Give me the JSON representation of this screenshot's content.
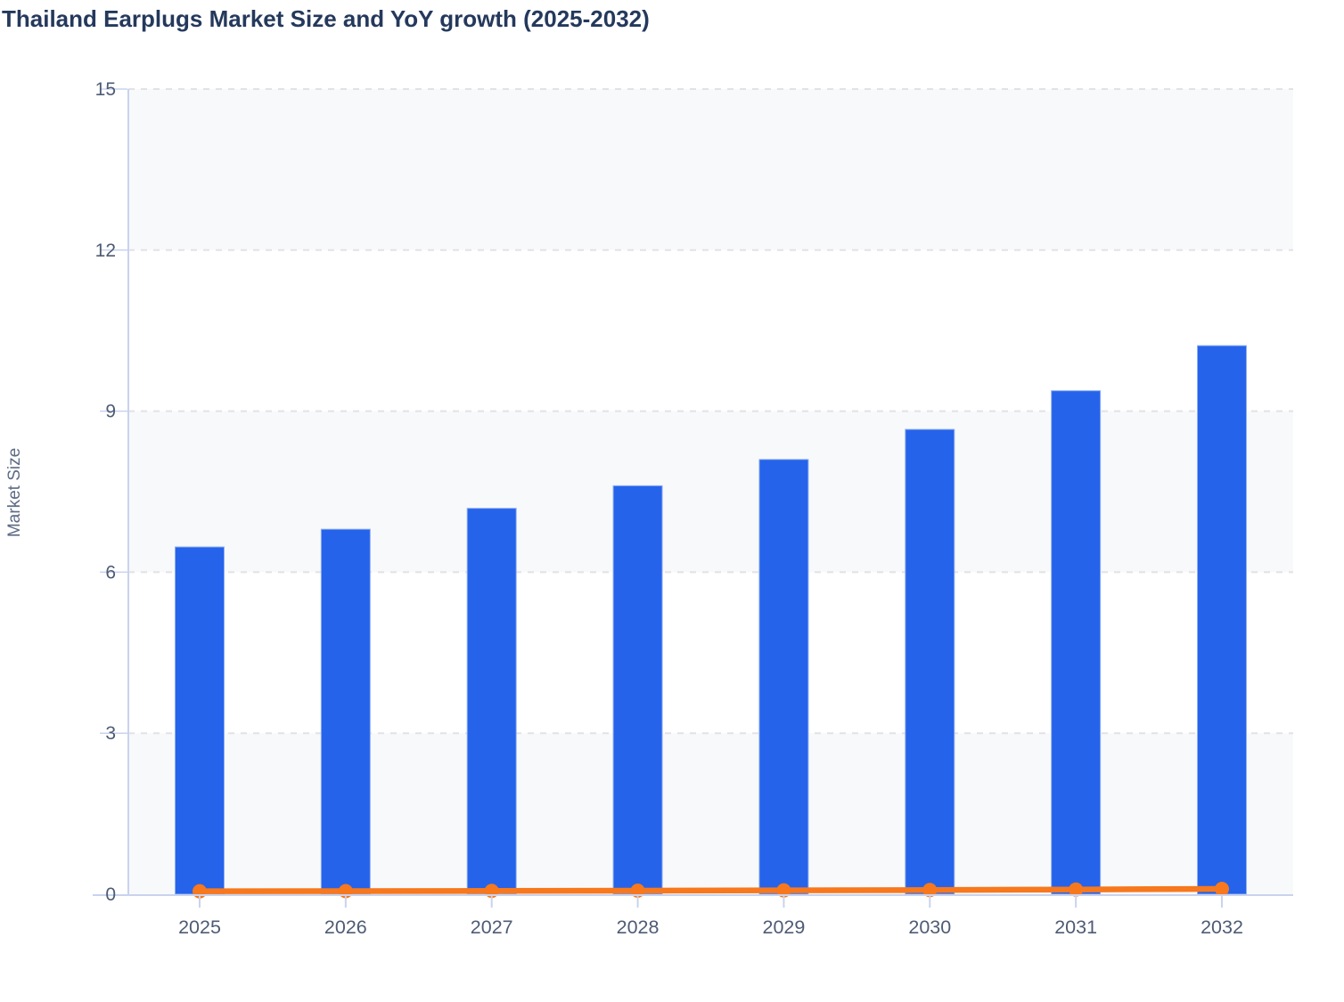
{
  "title": "Thailand Earplugs Market Size and YoY growth (2025-2032)",
  "chart_data": {
    "type": "bar",
    "subtype": "bar-with-line-overlay",
    "title": "Thailand Earplugs Market Size and YoY growth (2025-2032)",
    "xlabel": "",
    "ylabel": "Market Size",
    "categories": [
      "2025",
      "2026",
      "2027",
      "2028",
      "2029",
      "2030",
      "2031",
      "2032"
    ],
    "series": [
      {
        "name": "Market Size",
        "type": "bar",
        "values": [
          6.47,
          6.8,
          7.19,
          7.61,
          8.1,
          8.66,
          9.38,
          10.22
        ]
      },
      {
        "name": "YoY growth",
        "type": "line",
        "values": [
          0.055,
          0.058,
          0.062,
          0.066,
          0.072,
          0.078,
          0.088,
          0.1
        ]
      }
    ],
    "ylim": [
      0,
      15
    ],
    "y_ticks": [
      0,
      3,
      6,
      9,
      12,
      15
    ],
    "grid": "horizontal-dashed",
    "plot_bands": "alternating horizontal bands every 3 units starting shaded at 0",
    "legend": "none"
  },
  "colors": {
    "bar": "#2563eb",
    "bar_edge": "#8fb0f3",
    "line": "#f7781d",
    "marker": "#f7781d",
    "title": "#24395c",
    "tick_label": "#4e5b74",
    "axis_title": "#5d6b84",
    "axis_line": "#c9d3ee",
    "gridline": "#e2e2e7",
    "band": "#f8f9fb",
    "background": "#ffffff"
  }
}
